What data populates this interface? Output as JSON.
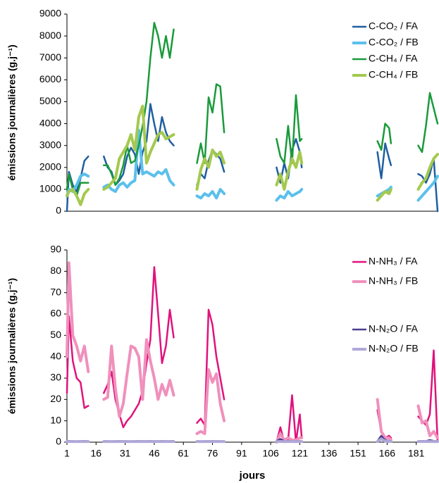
{
  "chart_data": [
    {
      "type": "line",
      "y_label": "émissions journalières (g.j⁻¹)",
      "x": [
        1,
        2,
        4,
        6,
        8,
        10,
        12,
        15,
        20,
        22,
        24,
        26,
        28,
        30,
        32,
        34,
        36,
        38,
        40,
        42,
        44,
        46,
        48,
        50,
        52,
        54,
        56,
        62,
        68,
        70,
        72,
        74,
        76,
        78,
        80,
        82,
        95,
        109,
        111,
        113,
        115,
        117,
        119,
        121,
        122,
        140,
        161,
        163,
        165,
        167,
        168,
        175,
        182,
        184,
        186,
        188,
        190,
        192
      ],
      "xlim": [
        1,
        192
      ],
      "ylim": [
        0,
        9000
      ],
      "yticks": [
        0,
        1000,
        2000,
        3000,
        4000,
        5000,
        6000,
        7000,
        8000,
        9000
      ],
      "series": [
        {
          "name": "C-CO₂ / FA",
          "color": "#1f5fa0",
          "width": 2.5,
          "values": [
            0,
            1800,
            1200,
            900,
            1500,
            2300,
            2500,
            null,
            2500,
            2000,
            1800,
            1200,
            1400,
            1700,
            2500,
            2900,
            2600,
            1700,
            2700,
            3200,
            4900,
            4000,
            3200,
            4300,
            3600,
            3200,
            3000,
            null,
            1200,
            1700,
            1500,
            2300,
            2800,
            2600,
            2400,
            1800,
            null,
            2000,
            1300,
            2200,
            1500,
            2800,
            3300,
            2700,
            2000,
            null,
            2700,
            1500,
            3100,
            2400,
            2100,
            null,
            1700,
            1600,
            1300,
            1700,
            2400,
            0
          ]
        },
        {
          "name": "C-CO₂ / FB",
          "color": "#5bc0eb",
          "width": 4,
          "values": [
            700,
            1000,
            900,
            1200,
            1600,
            1700,
            1600,
            null,
            1100,
            1200,
            1000,
            900,
            1200,
            1300,
            1100,
            1300,
            1400,
            3700,
            1700,
            1800,
            1700,
            1600,
            1800,
            1700,
            1900,
            1400,
            1200,
            null,
            700,
            600,
            800,
            700,
            900,
            600,
            1000,
            800,
            null,
            500,
            700,
            600,
            900,
            700,
            800,
            900,
            1000,
            null,
            700,
            800,
            900,
            1000,
            1100,
            null,
            500,
            700,
            900,
            1100,
            1300,
            1600
          ]
        },
        {
          "name": "C-CH₄ / FA",
          "color": "#1a9a3a",
          "width": 2.5,
          "values": [
            1000,
            1700,
            1000,
            700,
            1300,
            1300,
            1300,
            null,
            2100,
            2100,
            1700,
            1200,
            1500,
            2100,
            3000,
            2200,
            2300,
            3000,
            3900,
            5000,
            7000,
            8600,
            8000,
            7000,
            8000,
            7000,
            8300,
            null,
            2200,
            3100,
            2200,
            5200,
            4500,
            5800,
            5700,
            3600,
            null,
            3300,
            2500,
            2200,
            3900,
            2200,
            5300,
            3200,
            3300,
            null,
            3200,
            2800,
            4000,
            3800,
            3100,
            null,
            3000,
            2700,
            3900,
            5400,
            4700,
            4000
          ]
        },
        {
          "name": "C-CH₄ / FB",
          "color": "#a4c94e",
          "width": 4,
          "values": [
            700,
            900,
            1000,
            700,
            300,
            800,
            1000,
            null,
            1000,
            1100,
            1300,
            1500,
            2400,
            2700,
            3000,
            3500,
            2800,
            4300,
            4800,
            2200,
            2700,
            3100,
            3500,
            3600,
            3300,
            3400,
            3500,
            null,
            1000,
            1900,
            2400,
            2000,
            2800,
            2500,
            2700,
            2200,
            null,
            1200,
            1700,
            1000,
            1800,
            2400,
            2000,
            2700,
            2200,
            null,
            500,
            700,
            900,
            800,
            1000,
            null,
            1000,
            1300,
            1500,
            2000,
            2400,
            2600
          ]
        }
      ]
    },
    {
      "type": "line",
      "y_label": "émissions journalières (g.j⁻¹)",
      "x_label": "jours",
      "x": [
        1,
        2,
        4,
        6,
        8,
        10,
        12,
        15,
        20,
        22,
        24,
        26,
        28,
        30,
        32,
        34,
        36,
        38,
        40,
        42,
        44,
        46,
        48,
        50,
        52,
        54,
        56,
        62,
        68,
        70,
        72,
        74,
        76,
        78,
        80,
        82,
        95,
        109,
        111,
        113,
        115,
        117,
        119,
        121,
        122,
        140,
        161,
        163,
        165,
        167,
        168,
        175,
        182,
        184,
        186,
        188,
        190,
        192
      ],
      "xlim": [
        1,
        192
      ],
      "xticks": [
        1,
        16,
        31,
        46,
        61,
        76,
        91,
        106,
        121,
        136,
        151,
        166,
        181
      ],
      "ylim": [
        0,
        90
      ],
      "yticks": [
        0,
        10,
        20,
        30,
        40,
        50,
        60,
        70,
        80,
        90
      ],
      "series": [
        {
          "name": "N-NH₃ / FA",
          "color": "#e0127c",
          "width": 2.5,
          "values": [
            23,
            59,
            38,
            30,
            28,
            16,
            17,
            null,
            23,
            27,
            33,
            20,
            13,
            7,
            10,
            12,
            15,
            18,
            24,
            37,
            48,
            82,
            60,
            37,
            45,
            62,
            49,
            null,
            9,
            11,
            8,
            62,
            55,
            40,
            30,
            20,
            null,
            0,
            7,
            0,
            1,
            22,
            0,
            13,
            2,
            null,
            15,
            5,
            2,
            3,
            2,
            null,
            12,
            10,
            8,
            13,
            43,
            0
          ]
        },
        {
          "name": "N-NH₃ / FB",
          "color": "#f090bc",
          "width": 4,
          "values": [
            40,
            84,
            50,
            45,
            38,
            45,
            33,
            null,
            20,
            21,
            45,
            25,
            12,
            18,
            32,
            45,
            44,
            40,
            20,
            48,
            38,
            30,
            20,
            27,
            22,
            29,
            22,
            null,
            4,
            5,
            4,
            34,
            28,
            32,
            18,
            10,
            null,
            0,
            4,
            1,
            2,
            1,
            1,
            2,
            2,
            null,
            20,
            5,
            2,
            2,
            1,
            null,
            17,
            9,
            10,
            3,
            5,
            2
          ]
        },
        {
          "name": "N-N₂O / FA",
          "color": "#4a3e8f",
          "width": 2.5,
          "values": [
            0.5,
            0.6,
            0.5,
            0.4,
            0.5,
            0.6,
            0.5,
            null,
            0.5,
            0.5,
            0.4,
            0.5,
            0.6,
            0.5,
            0.5,
            0.4,
            0.5,
            0.6,
            0.5,
            0.5,
            0.6,
            0.5,
            0.5,
            0.6,
            0.5,
            0.5,
            0.6,
            null,
            0.5,
            0.4,
            0.5,
            0.5,
            0.6,
            0.5,
            0.5,
            0.4,
            null,
            0.5,
            1.5,
            0.5,
            0.6,
            0.5,
            0.5,
            0.6,
            0.5,
            null,
            0.5,
            3,
            1,
            0.6,
            0.5,
            null,
            0.5,
            0.6,
            0.5,
            1,
            0.6,
            0.5
          ]
        },
        {
          "name": "N-N₂O / FB",
          "color": "#b0a8d8",
          "width": 4,
          "values": [
            0.3,
            0.3,
            0.3,
            0.3,
            0.3,
            0.3,
            0.3,
            null,
            0.3,
            0.3,
            0.3,
            0.3,
            0.3,
            0.3,
            0.3,
            0.3,
            0.3,
            0.3,
            0.3,
            0.3,
            0.3,
            0.3,
            0.3,
            0.3,
            0.3,
            0.3,
            0.3,
            null,
            0.3,
            0.3,
            0.3,
            0.3,
            0.3,
            0.3,
            0.3,
            0.3,
            null,
            0.3,
            0.3,
            0.3,
            0.3,
            0.3,
            0.3,
            0.3,
            0.3,
            null,
            0.3,
            1.5,
            0.5,
            0.3,
            0.3,
            null,
            0.3,
            0.3,
            0.3,
            0.3,
            0.3,
            0.3
          ]
        }
      ]
    }
  ]
}
